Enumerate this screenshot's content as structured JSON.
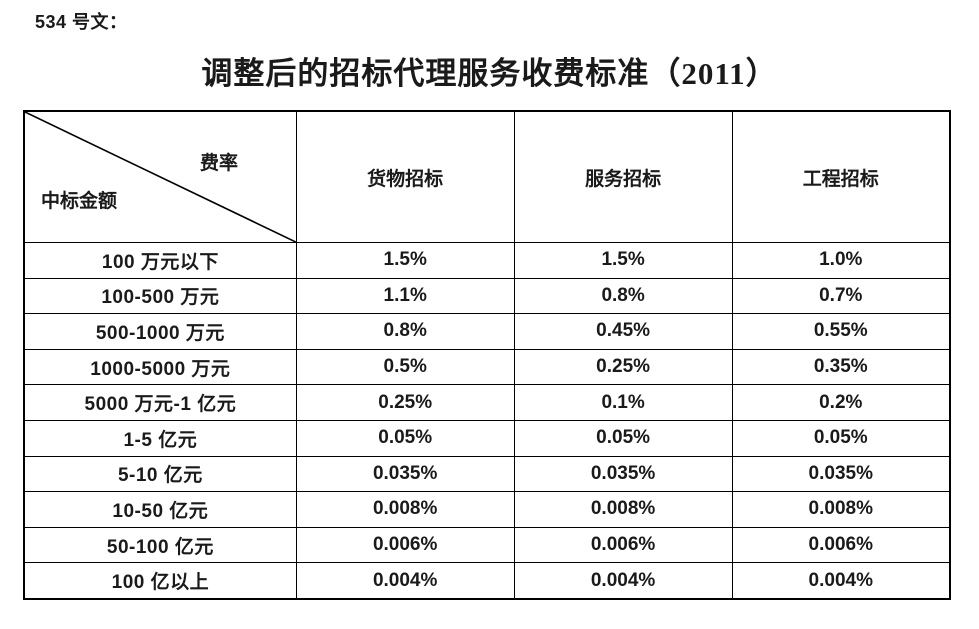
{
  "document": {
    "ref": "534 号文：",
    "title": "调整后的招标代理服务收费标准（2011）"
  },
  "table": {
    "corner": {
      "top_right": "费率",
      "bottom_left": "中标金额"
    },
    "columns": [
      "货物招标",
      "服务招标",
      "工程招标"
    ],
    "rows": [
      {
        "amount": "100 万元以下",
        "goods": "1.5%",
        "services": "1.5%",
        "engineering": "1.0%"
      },
      {
        "amount": "100-500 万元",
        "goods": "1.1%",
        "services": "0.8%",
        "engineering": "0.7%"
      },
      {
        "amount": "500-1000 万元",
        "goods": "0.8%",
        "services": "0.45%",
        "engineering": "0.55%"
      },
      {
        "amount": "1000-5000 万元",
        "goods": "0.5%",
        "services": "0.25%",
        "engineering": "0.35%"
      },
      {
        "amount": "5000 万元-1 亿元",
        "goods": "0.25%",
        "services": "0.1%",
        "engineering": "0.2%"
      },
      {
        "amount": "1-5 亿元",
        "goods": "0.05%",
        "services": "0.05%",
        "engineering": "0.05%"
      },
      {
        "amount": "5-10 亿元",
        "goods": "0.035%",
        "services": "0.035%",
        "engineering": "0.035%"
      },
      {
        "amount": "10-50 亿元",
        "goods": "0.008%",
        "services": "0.008%",
        "engineering": "0.008%"
      },
      {
        "amount": "50-100 亿元",
        "goods": "0.006%",
        "services": "0.006%",
        "engineering": "0.006%"
      },
      {
        "amount": "100 亿以上",
        "goods": "0.004%",
        "services": "0.004%",
        "engineering": "0.004%"
      }
    ],
    "colors": {
      "text": "#1a1a1a",
      "border": "#000000",
      "background": "#ffffff"
    }
  }
}
